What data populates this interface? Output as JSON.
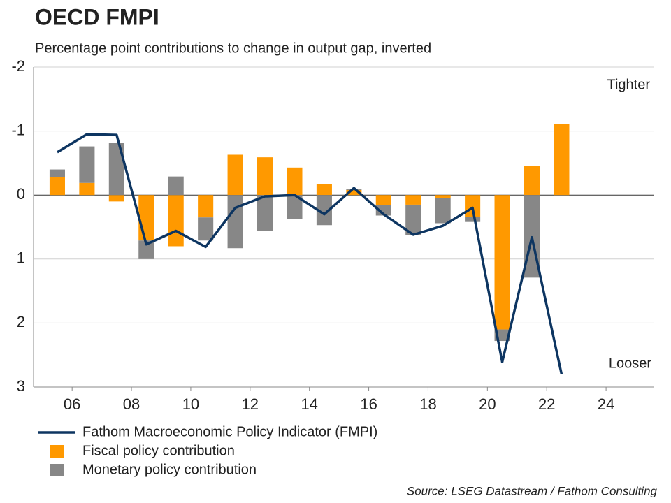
{
  "chart_data": {
    "type": "bar-line",
    "title": "OECD FMPI",
    "subtitle": "Percentage point contributions to change in output gap, inverted",
    "annotations": [
      "Tighter",
      "Looser"
    ],
    "source": "Source: LSEG Datastream / Fathom Consulting",
    "x": [
      2005.5,
      2006.5,
      2007.5,
      2008.5,
      2009.5,
      2010.5,
      2011.5,
      2012.5,
      2013.5,
      2014.5,
      2015.5,
      2016.5,
      2017.5,
      2018.5,
      2019.5,
      2020.5,
      2021.5,
      2022.5
    ],
    "series": [
      {
        "name": "Fathom Macroeconomic Policy Indicator (FMPI)",
        "kind": "line",
        "color": "#0d3561",
        "values": [
          -0.67,
          -0.95,
          -0.94,
          0.77,
          0.56,
          0.81,
          0.2,
          0.02,
          0.0,
          0.3,
          -0.11,
          0.3,
          0.62,
          0.48,
          0.2,
          2.61,
          0.66,
          2.8
        ]
      },
      {
        "name": "Fiscal policy contribution",
        "kind": "bar",
        "color": "#ff9900",
        "values": [
          -0.28,
          -0.19,
          0.1,
          0.71,
          0.8,
          0.35,
          -0.63,
          -0.59,
          -0.43,
          -0.17,
          -0.08,
          0.16,
          0.15,
          0.05,
          0.34,
          2.1,
          -0.45,
          -1.11
        ]
      },
      {
        "name": "Monetary policy contribution",
        "kind": "bar",
        "color": "#878787",
        "values": [
          -0.12,
          -0.57,
          -0.82,
          0.29,
          -0.29,
          0.36,
          0.83,
          0.56,
          0.37,
          0.47,
          -0.02,
          0.16,
          0.47,
          0.39,
          0.08,
          0.18,
          1.29,
          0
        ]
      }
    ],
    "xlim": [
      2004.7,
      2025.6
    ],
    "xticks": [
      {
        "value": 2006,
        "label": "06"
      },
      {
        "value": 2008,
        "label": "08"
      },
      {
        "value": 2010,
        "label": "10"
      },
      {
        "value": 2012,
        "label": "12"
      },
      {
        "value": 2014,
        "label": "14"
      },
      {
        "value": 2016,
        "label": "16"
      },
      {
        "value": 2018,
        "label": "18"
      },
      {
        "value": 2020,
        "label": "20"
      },
      {
        "value": 2022,
        "label": "22"
      },
      {
        "value": 2024,
        "label": "24"
      }
    ],
    "ylim": [
      -2,
      3
    ],
    "y_inverted": true,
    "yticks": [
      -2,
      -1,
      0,
      1,
      2,
      3
    ],
    "grid": true
  }
}
